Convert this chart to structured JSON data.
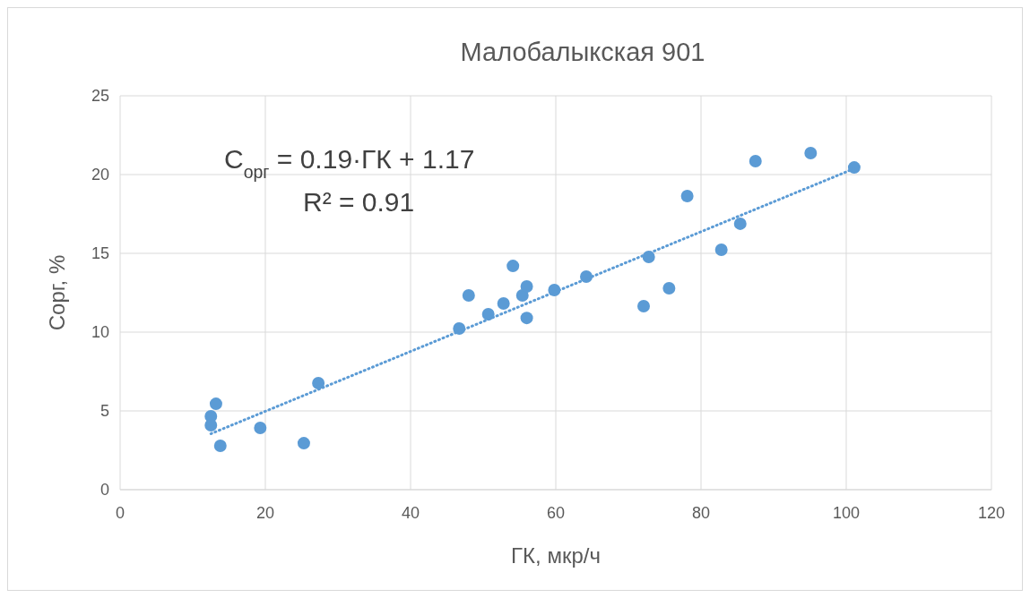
{
  "chart_data": {
    "type": "scatter",
    "title": "Малобалыкская 901",
    "xlabel": "ГК, мкр/ч",
    "ylabel": "Сорг, %",
    "xlim": [
      0,
      120
    ],
    "xticks": [
      0,
      20,
      40,
      60,
      80,
      100,
      120
    ],
    "ylim": [
      0,
      25
    ],
    "yticks": [
      0,
      5,
      10,
      15,
      20,
      25
    ],
    "grid": true,
    "marker": "circle",
    "series": [
      {
        "color": "#5b9bd5",
        "x": [
          12.5,
          12.5,
          13.2,
          13.8,
          19.3,
          25.3,
          27.3,
          46.7,
          48.0,
          50.7,
          52.8,
          54.1,
          55.4,
          56.0,
          56.0,
          59.8,
          64.2,
          72.1,
          72.8,
          75.6,
          78.1,
          82.8,
          85.4,
          87.5,
          95.1,
          101.1
        ],
        "values": [
          4.66,
          4.09,
          5.45,
          2.78,
          3.92,
          2.95,
          6.76,
          10.23,
          12.33,
          11.14,
          11.82,
          14.2,
          12.33,
          12.9,
          10.9,
          12.67,
          13.52,
          11.65,
          14.77,
          12.78,
          18.64,
          15.23,
          16.88,
          20.85,
          21.36,
          20.45
        ]
      },
      {
        "type": "line",
        "color": "#5b9bd5",
        "line_style": "dotted",
        "marker": "none",
        "x": [
          12.5,
          101.1
        ],
        "values": [
          3.55,
          20.38
        ]
      }
    ],
    "annotations": [
      "C$_{орг}$ = 0.19·ГК + 1.17",
      "R² = 0.91"
    ]
  }
}
